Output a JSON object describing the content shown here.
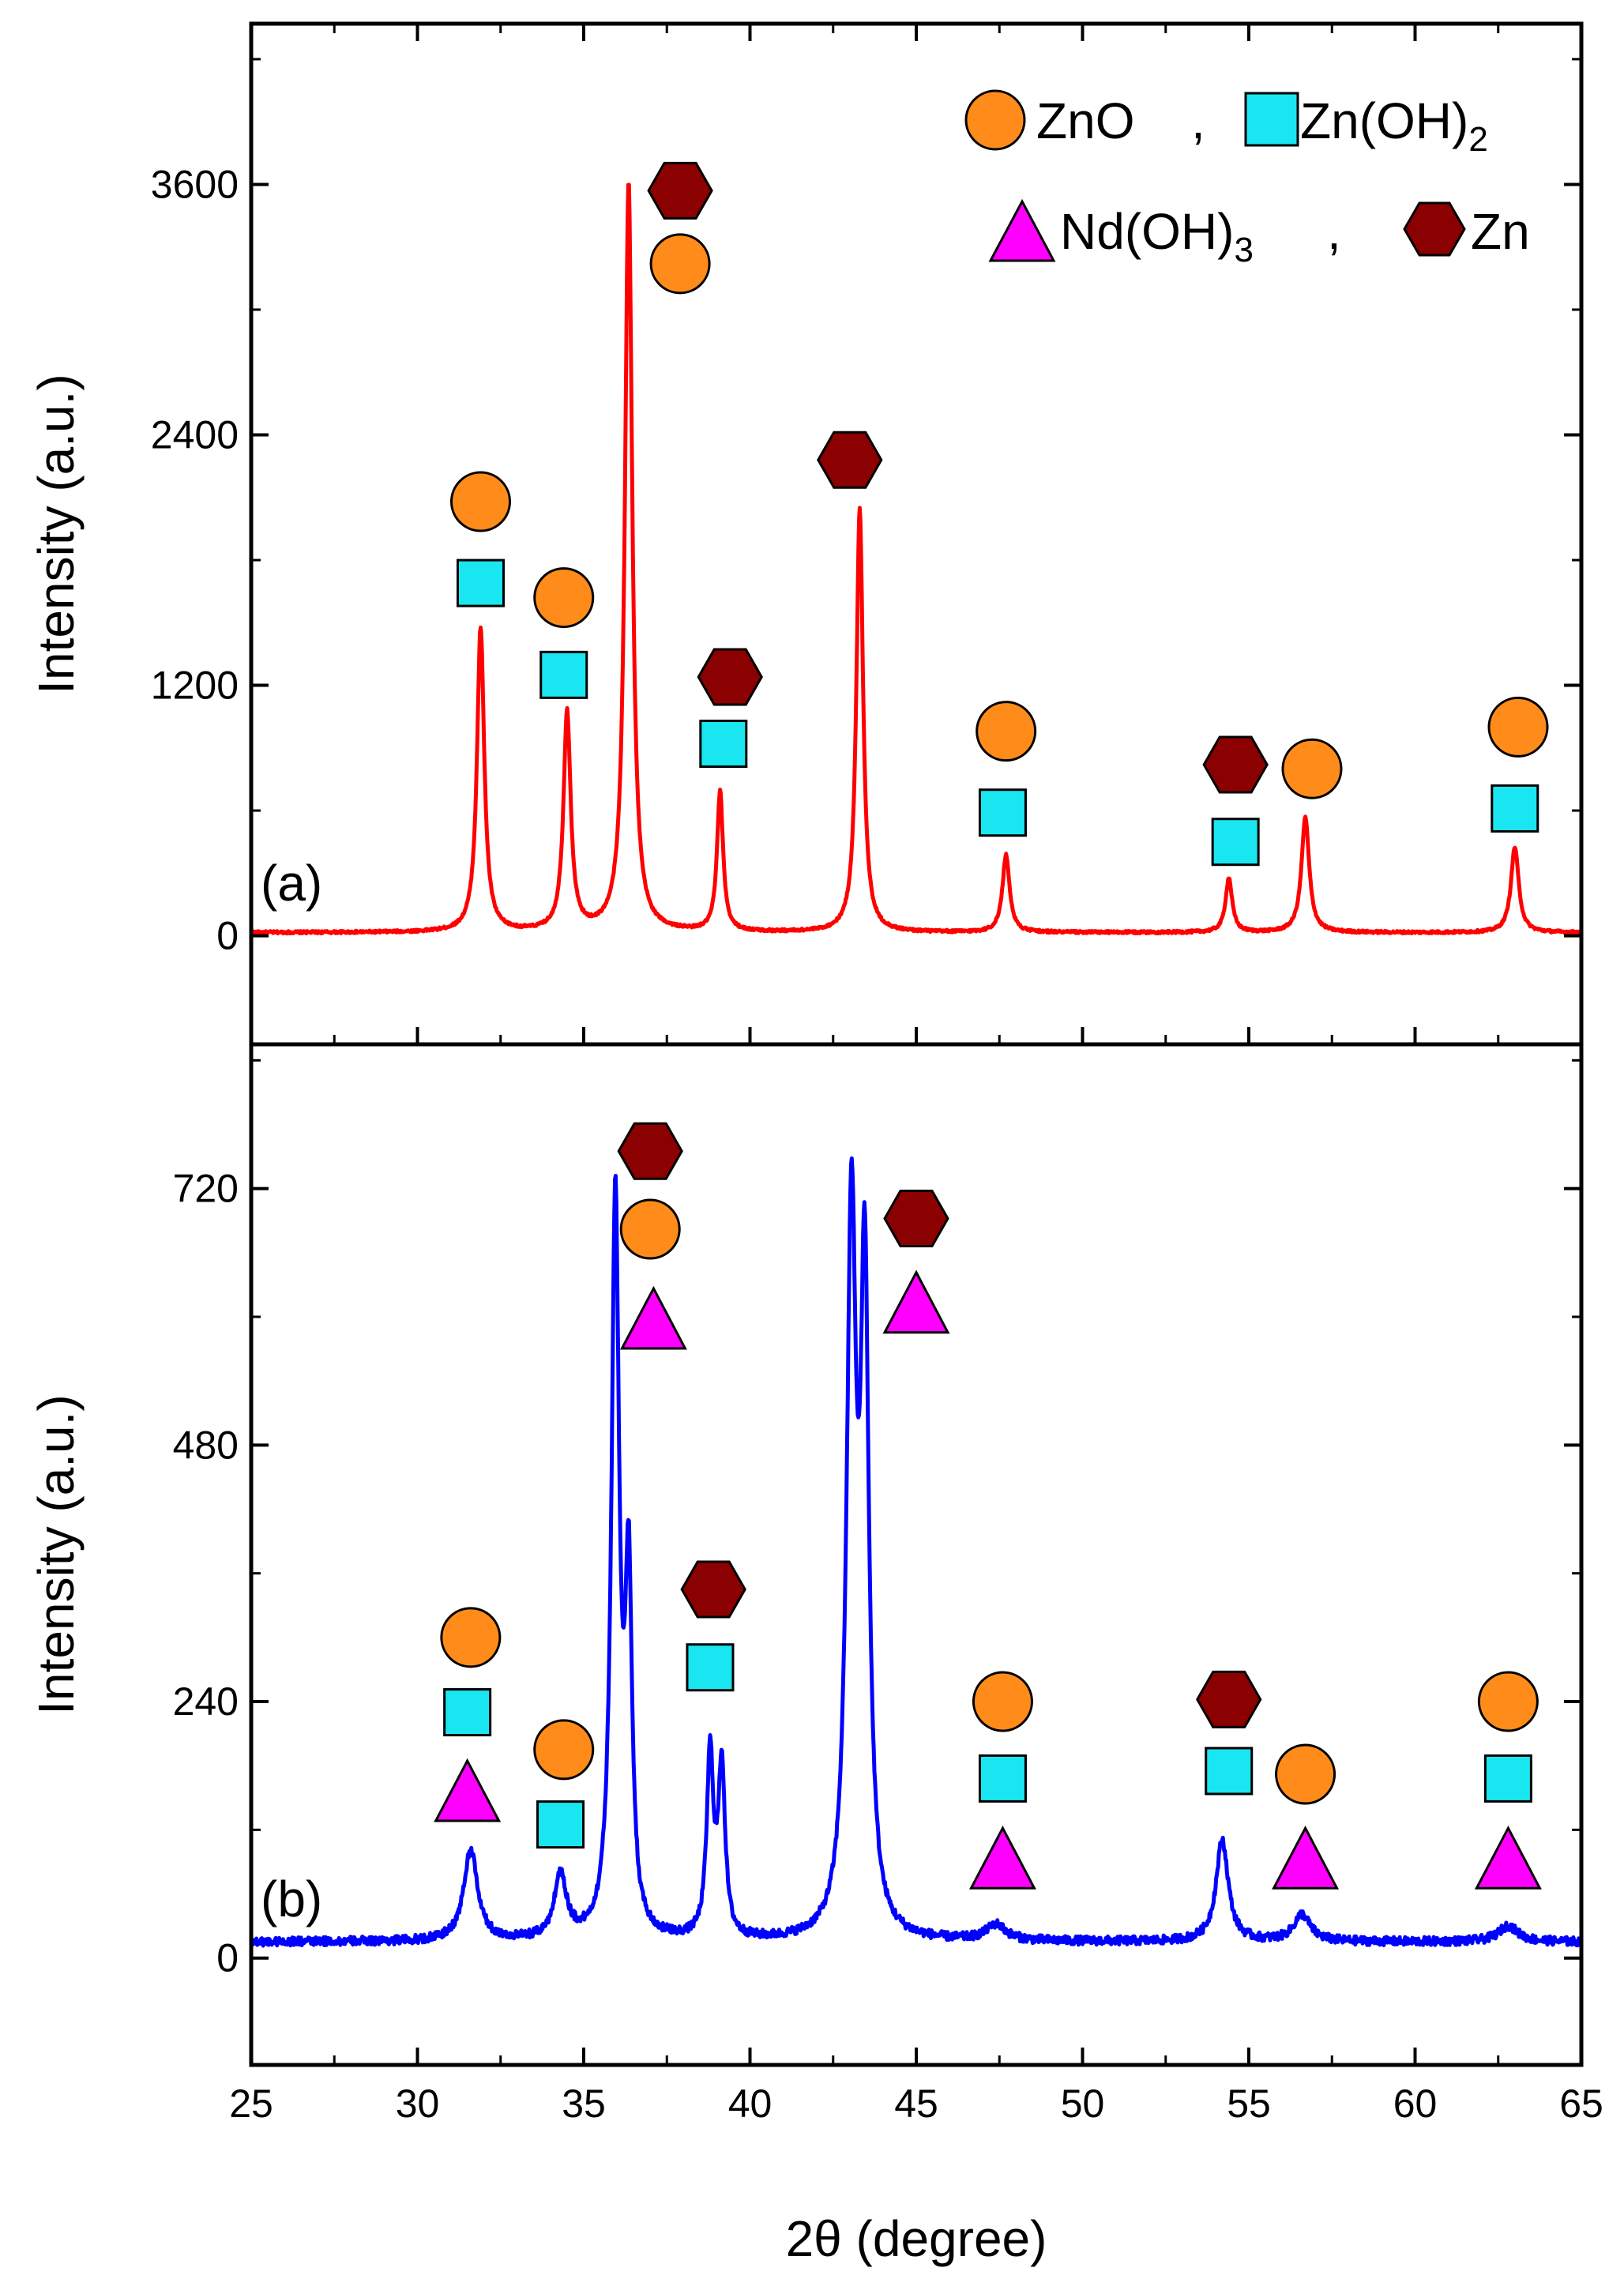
{
  "colors": {
    "panel_a_line": "#ff0000",
    "panel_b_line": "#0000ff",
    "zno": "#ff8c1a",
    "zn_oh_2": "#19e6f0",
    "nd_oh_3": "#ff00ff",
    "zn": "#8b0000",
    "axis": "#000000"
  },
  "legend": {
    "zno": {
      "label": "ZnO",
      "icon": "circle-icon"
    },
    "comma1": ",",
    "zn_oh_2": {
      "label": "Zn(OH)",
      "sub": "2",
      "icon": "square-icon"
    },
    "nd_oh_3": {
      "label": "Nd(OH)",
      "sub": "3",
      "icon": "triangle-icon"
    },
    "comma2": ",",
    "zn": {
      "label": "Zn",
      "icon": "hexagon-icon"
    }
  },
  "chart_data": [
    {
      "id": "a",
      "type": "line",
      "panel_label": "(a)",
      "xlabel": "2θ (degree)",
      "ylabel": "Intensity (a.u.)",
      "xlim": [
        25,
        65
      ],
      "ylim": [
        -520,
        4370
      ],
      "yticks": [
        0,
        1200,
        2400,
        3600
      ],
      "ytick_labels": [
        "0",
        "1200",
        "2400",
        "3600"
      ],
      "baseline": 15,
      "noise": 6,
      "peaks": [
        {
          "x": 31.9,
          "y": 1460,
          "w": 0.13
        },
        {
          "x": 34.5,
          "y": 1050,
          "w": 0.13
        },
        {
          "x": 36.35,
          "y": 3600,
          "w": 0.13
        },
        {
          "x": 39.1,
          "y": 670,
          "w": 0.11
        },
        {
          "x": 43.3,
          "y": 2030,
          "w": 0.12
        },
        {
          "x": 47.7,
          "y": 370,
          "w": 0.13
        },
        {
          "x": 54.4,
          "y": 260,
          "w": 0.12
        },
        {
          "x": 56.7,
          "y": 550,
          "w": 0.14
        },
        {
          "x": 63.0,
          "y": 410,
          "w": 0.14
        }
      ],
      "markers": [
        {
          "phase": "zno",
          "x": 31.9,
          "y": 2080
        },
        {
          "phase": "zn_oh_2",
          "x": 31.9,
          "y": 1690
        },
        {
          "phase": "zno",
          "x": 34.4,
          "y": 1620
        },
        {
          "phase": "zn_oh_2",
          "x": 34.4,
          "y": 1250
        },
        {
          "phase": "zn",
          "x": 37.9,
          "y": 3570
        },
        {
          "phase": "zno",
          "x": 37.9,
          "y": 3220
        },
        {
          "phase": "zn",
          "x": 39.4,
          "y": 1240
        },
        {
          "phase": "zn_oh_2",
          "x": 39.2,
          "y": 920
        },
        {
          "phase": "zn",
          "x": 43.0,
          "y": 2280
        },
        {
          "phase": "zno",
          "x": 47.7,
          "y": 980
        },
        {
          "phase": "zn_oh_2",
          "x": 47.6,
          "y": 590
        },
        {
          "phase": "zn",
          "x": 54.6,
          "y": 820
        },
        {
          "phase": "zn_oh_2",
          "x": 54.6,
          "y": 450
        },
        {
          "phase": "zno",
          "x": 56.9,
          "y": 800
        },
        {
          "phase": "zno",
          "x": 63.1,
          "y": 1000
        },
        {
          "phase": "zn_oh_2",
          "x": 63.0,
          "y": 610
        }
      ]
    },
    {
      "id": "b",
      "type": "line",
      "panel_label": "(b)",
      "xlabel": "2θ (degree)",
      "ylabel": "Intensity (a.u.)",
      "xlim": [
        25,
        65
      ],
      "ylim": [
        -100,
        855
      ],
      "yticks": [
        0,
        240,
        480,
        720
      ],
      "ytick_labels": [
        "0",
        "240",
        "480",
        "720"
      ],
      "baseline": 15,
      "noise": 4,
      "peaks": [
        {
          "x": 31.6,
          "y": 85,
          "w": 0.25
        },
        {
          "x": 34.3,
          "y": 60,
          "w": 0.22
        },
        {
          "x": 35.95,
          "y": 690,
          "w": 0.14
        },
        {
          "x": 36.35,
          "y": 320,
          "w": 0.12
        },
        {
          "x": 38.8,
          "y": 170,
          "w": 0.12
        },
        {
          "x": 39.15,
          "y": 160,
          "w": 0.12
        },
        {
          "x": 43.05,
          "y": 660,
          "w": 0.17
        },
        {
          "x": 43.45,
          "y": 590,
          "w": 0.15
        },
        {
          "x": 47.4,
          "y": 15,
          "w": 0.35
        },
        {
          "x": 54.2,
          "y": 95,
          "w": 0.22
        },
        {
          "x": 56.6,
          "y": 25,
          "w": 0.3
        },
        {
          "x": 62.8,
          "y": 15,
          "w": 0.35
        }
      ],
      "markers": [
        {
          "phase": "zno",
          "x": 31.6,
          "y": 300
        },
        {
          "phase": "zn_oh_2",
          "x": 31.5,
          "y": 230
        },
        {
          "phase": "nd_oh_3",
          "x": 31.5,
          "y": 155
        },
        {
          "phase": "zno",
          "x": 34.4,
          "y": 195
        },
        {
          "phase": "zn_oh_2",
          "x": 34.3,
          "y": 125
        },
        {
          "phase": "zn",
          "x": 37.0,
          "y": 755
        },
        {
          "phase": "zno",
          "x": 37.0,
          "y": 682
        },
        {
          "phase": "nd_oh_3",
          "x": 37.1,
          "y": 597
        },
        {
          "phase": "zn",
          "x": 38.9,
          "y": 345
        },
        {
          "phase": "zn_oh_2",
          "x": 38.8,
          "y": 272
        },
        {
          "phase": "zn",
          "x": 45.0,
          "y": 692
        },
        {
          "phase": "nd_oh_3",
          "x": 45.0,
          "y": 612
        },
        {
          "phase": "zno",
          "x": 47.6,
          "y": 240
        },
        {
          "phase": "zn_oh_2",
          "x": 47.6,
          "y": 168
        },
        {
          "phase": "nd_oh_3",
          "x": 47.6,
          "y": 92
        },
        {
          "phase": "zn",
          "x": 54.4,
          "y": 242
        },
        {
          "phase": "zn_oh_2",
          "x": 54.4,
          "y": 175
        },
        {
          "phase": "zno",
          "x": 56.7,
          "y": 172
        },
        {
          "phase": "nd_oh_3",
          "x": 56.7,
          "y": 92
        },
        {
          "phase": "zno",
          "x": 62.8,
          "y": 240
        },
        {
          "phase": "zn_oh_2",
          "x": 62.8,
          "y": 168
        },
        {
          "phase": "nd_oh_3",
          "x": 62.8,
          "y": 92
        }
      ]
    }
  ],
  "xaxis": {
    "title": "2θ (degree)",
    "ticks": [
      25,
      30,
      35,
      40,
      45,
      50,
      55,
      60,
      65
    ],
    "tick_labels": [
      "25",
      "30",
      "35",
      "40",
      "45",
      "50",
      "55",
      "60",
      "65"
    ]
  }
}
